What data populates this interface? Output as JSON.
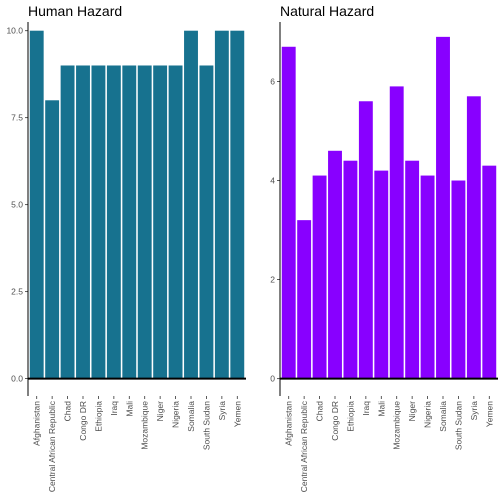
{
  "chart_data": [
    {
      "type": "bar",
      "title": "Human Hazard",
      "xlabel": "",
      "ylabel": "",
      "categories": [
        "Afghanistan",
        "Central African Republic",
        "Chad",
        "Congo DR",
        "Ethiopia",
        "Iraq",
        "Mali",
        "Mozambique",
        "Niger",
        "Nigeria",
        "Somalia",
        "South Sudan",
        "Syria",
        "Yemen"
      ],
      "values": [
        10,
        8,
        9,
        9,
        9,
        9,
        9,
        9,
        9,
        9,
        10,
        9,
        10,
        10
      ],
      "ylim": [
        -0.5,
        10.25
      ],
      "yticks": [
        "0.0",
        "2.5",
        "5.0",
        "7.5",
        "10.0"
      ],
      "ytick_values": [
        0,
        2.5,
        5,
        7.5,
        10
      ],
      "bar_color": "#17728f",
      "grid": false,
      "legend": "none"
    },
    {
      "type": "bar",
      "title": "Natural Hazard",
      "xlabel": "",
      "ylabel": "",
      "categories": [
        "Afghanistan",
        "Central African Republic",
        "Chad",
        "Congo DR",
        "Ethiopia",
        "Iraq",
        "Mali",
        "Mozambique",
        "Niger",
        "Nigeria",
        "Somalia",
        "South Sudan",
        "Syria",
        "Yemen"
      ],
      "values": [
        6.7,
        3.2,
        4.1,
        4.6,
        4.4,
        5.6,
        4.2,
        5.9,
        4.4,
        4.1,
        6.9,
        4.0,
        5.7,
        4.3
      ],
      "ylim": [
        -0.35,
        7.2
      ],
      "yticks": [
        "0",
        "2",
        "4",
        "6"
      ],
      "ytick_values": [
        0,
        2,
        4,
        6
      ],
      "bar_color": "#8800ff",
      "grid": false,
      "legend": "none"
    }
  ]
}
